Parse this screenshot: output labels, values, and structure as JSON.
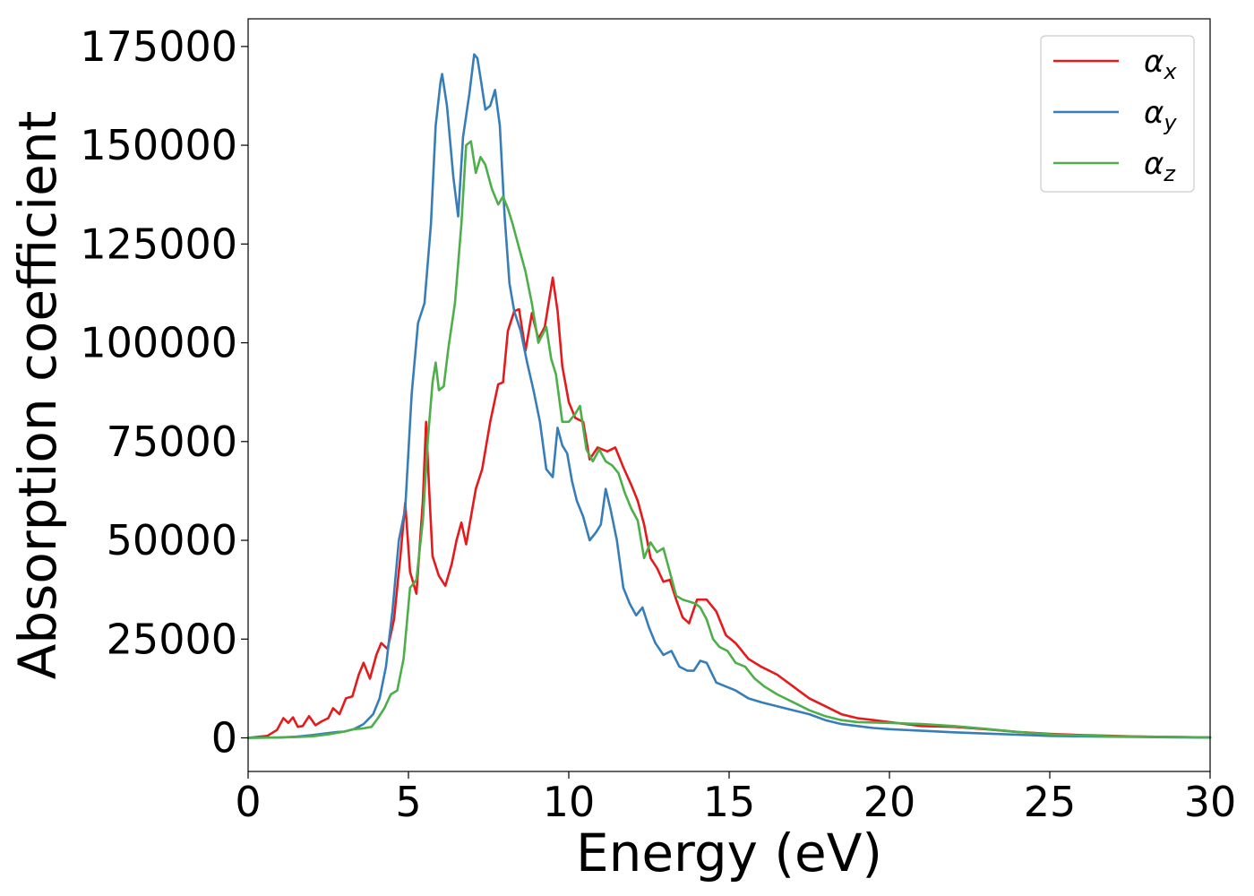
{
  "chart_data": {
    "type": "line",
    "title": "",
    "xlabel": "Energy (eV)",
    "ylabel": "Absorption coefficient",
    "xlim": [
      0,
      30
    ],
    "ylim": [
      -8500,
      182000
    ],
    "xticks": [
      0,
      5,
      10,
      15,
      20,
      25,
      30
    ],
    "xtick_labels": [
      "0",
      "5",
      "10",
      "15",
      "20",
      "25",
      "30"
    ],
    "yticks": [
      0,
      25000,
      50000,
      75000,
      100000,
      125000,
      150000,
      175000
    ],
    "ytick_labels": [
      "0",
      "25000",
      "50000",
      "75000",
      "100000",
      "125000",
      "150000",
      "175000"
    ],
    "grid": false,
    "legend": "top-right",
    "series": [
      {
        "name": "α",
        "subscript": "x",
        "color": "#e41a1c",
        "x": [
          0,
          0.6,
          0.9,
          1.1,
          1.25,
          1.4,
          1.55,
          1.7,
          1.9,
          2.1,
          2.3,
          2.5,
          2.65,
          2.85,
          3.05,
          3.25,
          3.45,
          3.6,
          3.8,
          4.0,
          4.15,
          4.35,
          4.55,
          4.75,
          4.9,
          5.05,
          5.25,
          5.45,
          5.55,
          5.65,
          5.75,
          5.95,
          6.15,
          6.35,
          6.5,
          6.65,
          6.8,
          6.95,
          7.1,
          7.3,
          7.55,
          7.8,
          7.95,
          8.1,
          8.3,
          8.45,
          8.65,
          8.85,
          9.05,
          9.25,
          9.5,
          9.65,
          9.8,
          10.0,
          10.2,
          10.45,
          10.65,
          10.9,
          11.2,
          11.45,
          11.7,
          11.95,
          12.15,
          12.35,
          12.55,
          12.75,
          12.95,
          13.15,
          13.35,
          13.55,
          13.75,
          14.0,
          14.3,
          14.6,
          14.9,
          15.2,
          15.6,
          16.0,
          16.5,
          17.0,
          17.5,
          18.0,
          18.5,
          19.0,
          19.5,
          20.0,
          20.5,
          21.0,
          22.0,
          23.0,
          24.0,
          25.0,
          26.0,
          27.0,
          28.0,
          29.0,
          30.0
        ],
        "y": [
          0,
          500,
          2000,
          5000,
          3800,
          5200,
          2800,
          3000,
          5500,
          3200,
          4200,
          5000,
          7500,
          6000,
          10000,
          10500,
          16000,
          19000,
          15000,
          21000,
          24000,
          22500,
          30000,
          46000,
          59500,
          42000,
          36500,
          60000,
          80000,
          62000,
          46000,
          41000,
          38500,
          44000,
          50000,
          54500,
          49000,
          56000,
          63000,
          68000,
          80000,
          89500,
          90000,
          103000,
          108000,
          108500,
          98000,
          107500,
          101000,
          104000,
          116500,
          108000,
          94000,
          85000,
          81000,
          80000,
          70500,
          73500,
          72500,
          73500,
          68500,
          64000,
          60000,
          54000,
          45500,
          43000,
          39500,
          40000,
          35000,
          30500,
          29000,
          35000,
          35000,
          32000,
          26000,
          24000,
          20000,
          18000,
          16000,
          13000,
          10000,
          8000,
          6000,
          5000,
          4500,
          4000,
          3500,
          3000,
          2800,
          2200,
          1500,
          1000,
          700,
          500,
          300,
          200,
          100
        ]
      },
      {
        "name": "α",
        "subscript": "y",
        "color": "#377eb8",
        "x": [
          0,
          1.0,
          1.5,
          2.0,
          2.5,
          2.8,
          3.0,
          3.3,
          3.6,
          3.9,
          4.1,
          4.3,
          4.5,
          4.7,
          4.9,
          5.1,
          5.3,
          5.5,
          5.7,
          5.85,
          6.0,
          6.05,
          6.2,
          6.4,
          6.55,
          6.7,
          6.9,
          7.05,
          7.15,
          7.25,
          7.4,
          7.55,
          7.7,
          7.85,
          8.0,
          8.15,
          8.3,
          8.5,
          8.7,
          8.9,
          9.1,
          9.3,
          9.5,
          9.65,
          9.8,
          9.95,
          10.1,
          10.25,
          10.45,
          10.65,
          10.85,
          11.0,
          11.15,
          11.3,
          11.5,
          11.7,
          11.9,
          12.1,
          12.3,
          12.5,
          12.7,
          12.95,
          13.2,
          13.45,
          13.7,
          13.9,
          14.1,
          14.3,
          14.6,
          14.9,
          15.2,
          15.6,
          16.0,
          16.5,
          17.0,
          17.5,
          18.0,
          18.5,
          19.0,
          19.5,
          20.0,
          21.0,
          22.0,
          23.0,
          24.0,
          25.0,
          26.0,
          27.0,
          28.0,
          29.0,
          30.0
        ],
        "y": [
          0,
          100,
          300,
          700,
          1200,
          1500,
          1600,
          2200,
          3500,
          6000,
          10000,
          18000,
          32000,
          50000,
          58000,
          87000,
          105000,
          110000,
          130000,
          155000,
          166000,
          168000,
          160000,
          142000,
          132000,
          152000,
          163000,
          173000,
          172000,
          167000,
          159000,
          160000,
          164000,
          155000,
          132000,
          115000,
          108000,
          103000,
          95000,
          88000,
          80000,
          68000,
          66000,
          78500,
          74000,
          72000,
          65000,
          60000,
          56000,
          50000,
          52000,
          54000,
          63000,
          58000,
          50000,
          38000,
          34000,
          31000,
          33000,
          28000,
          24000,
          21000,
          22000,
          18000,
          17000,
          17000,
          19500,
          19000,
          14000,
          13000,
          12000,
          10000,
          9000,
          8000,
          7000,
          6000,
          4500,
          3500,
          3000,
          2500,
          2200,
          1800,
          1400,
          1100,
          800,
          500,
          400,
          300,
          200,
          150,
          100
        ]
      },
      {
        "name": "α",
        "subscript": "z",
        "color": "#4daf4a",
        "x": [
          0,
          1.0,
          1.5,
          2.0,
          2.5,
          3.0,
          3.3,
          3.6,
          3.85,
          4.05,
          4.25,
          4.45,
          4.65,
          4.85,
          5.05,
          5.25,
          5.45,
          5.6,
          5.75,
          5.85,
          5.95,
          6.1,
          6.25,
          6.45,
          6.65,
          6.8,
          6.95,
          7.1,
          7.25,
          7.4,
          7.6,
          7.8,
          7.95,
          8.1,
          8.25,
          8.45,
          8.65,
          8.85,
          9.05,
          9.3,
          9.45,
          9.6,
          9.8,
          10.0,
          10.2,
          10.35,
          10.55,
          10.75,
          10.95,
          11.15,
          11.35,
          11.55,
          11.75,
          11.95,
          12.15,
          12.35,
          12.55,
          12.75,
          12.95,
          13.15,
          13.35,
          13.55,
          13.75,
          13.95,
          14.1,
          14.3,
          14.5,
          14.7,
          14.95,
          15.2,
          15.5,
          15.8,
          16.1,
          16.5,
          17.0,
          17.5,
          18.0,
          18.5,
          19.0,
          20.0,
          21.0,
          22.0,
          23.0,
          24.0,
          25.0,
          26.0,
          27.0,
          28.0,
          29.0,
          30.0
        ],
        "y": [
          0,
          100,
          200,
          400,
          900,
          1600,
          2200,
          2400,
          2800,
          5000,
          7500,
          11000,
          12000,
          20000,
          38000,
          40000,
          55000,
          75000,
          90000,
          95000,
          88000,
          89000,
          99000,
          110000,
          130000,
          150000,
          151000,
          143000,
          147000,
          145000,
          139000,
          135000,
          137000,
          134000,
          130000,
          124000,
          118000,
          110000,
          100000,
          104000,
          96000,
          92000,
          80000,
          80000,
          82000,
          84000,
          73000,
          70000,
          73000,
          70000,
          69000,
          67000,
          62000,
          58000,
          55000,
          45500,
          49500,
          47000,
          48000,
          42000,
          36000,
          35000,
          34500,
          34000,
          33000,
          30000,
          25000,
          23000,
          22000,
          19000,
          18000,
          15000,
          13000,
          11000,
          9000,
          7000,
          5500,
          4500,
          4000,
          3800,
          3500,
          3000,
          2300,
          1500,
          900,
          600,
          400,
          300,
          200,
          100
        ]
      }
    ]
  }
}
